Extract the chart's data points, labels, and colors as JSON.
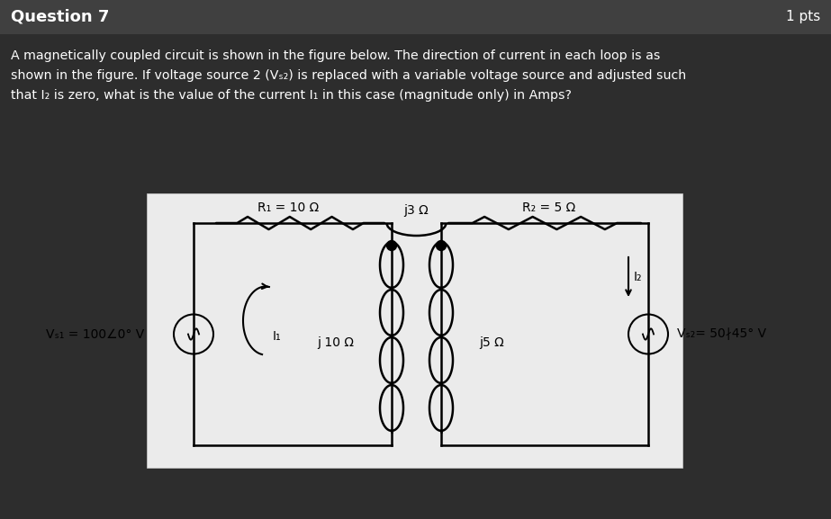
{
  "bg_color": "#2d2d2d",
  "header_color": "#404040",
  "panel_bg": "#ebebeb",
  "text_color": "#ffffff",
  "title": "Question 7",
  "pts": "1 pts",
  "q_lines": [
    "A magnetically coupled circuit is shown in the figure below. The direction of current in each loop is as",
    "shown in the figure. If voltage source 2 (Vₛ₂) is replaced with a variable voltage source and adjusted such",
    "that I₂ is zero, what is the value of the current I₁ in this case (magnitude only) in Amps?"
  ],
  "R1_label": "R₁ = 10 Ω",
  "R2_label": "R₂ = 5 Ω",
  "jM_label": "j3 Ω",
  "jL1_label": "j 10 Ω",
  "jL2_label": "j5 Ω",
  "Vs1_label": "Vₛ₁ = 100∠0° V",
  "Vs2_label": "Vₛ₂= 50∤45° V",
  "I1_label": "I₁",
  "I2_label": "I₂",
  "wire_color": "#000000",
  "panel_edge": "#cccccc"
}
